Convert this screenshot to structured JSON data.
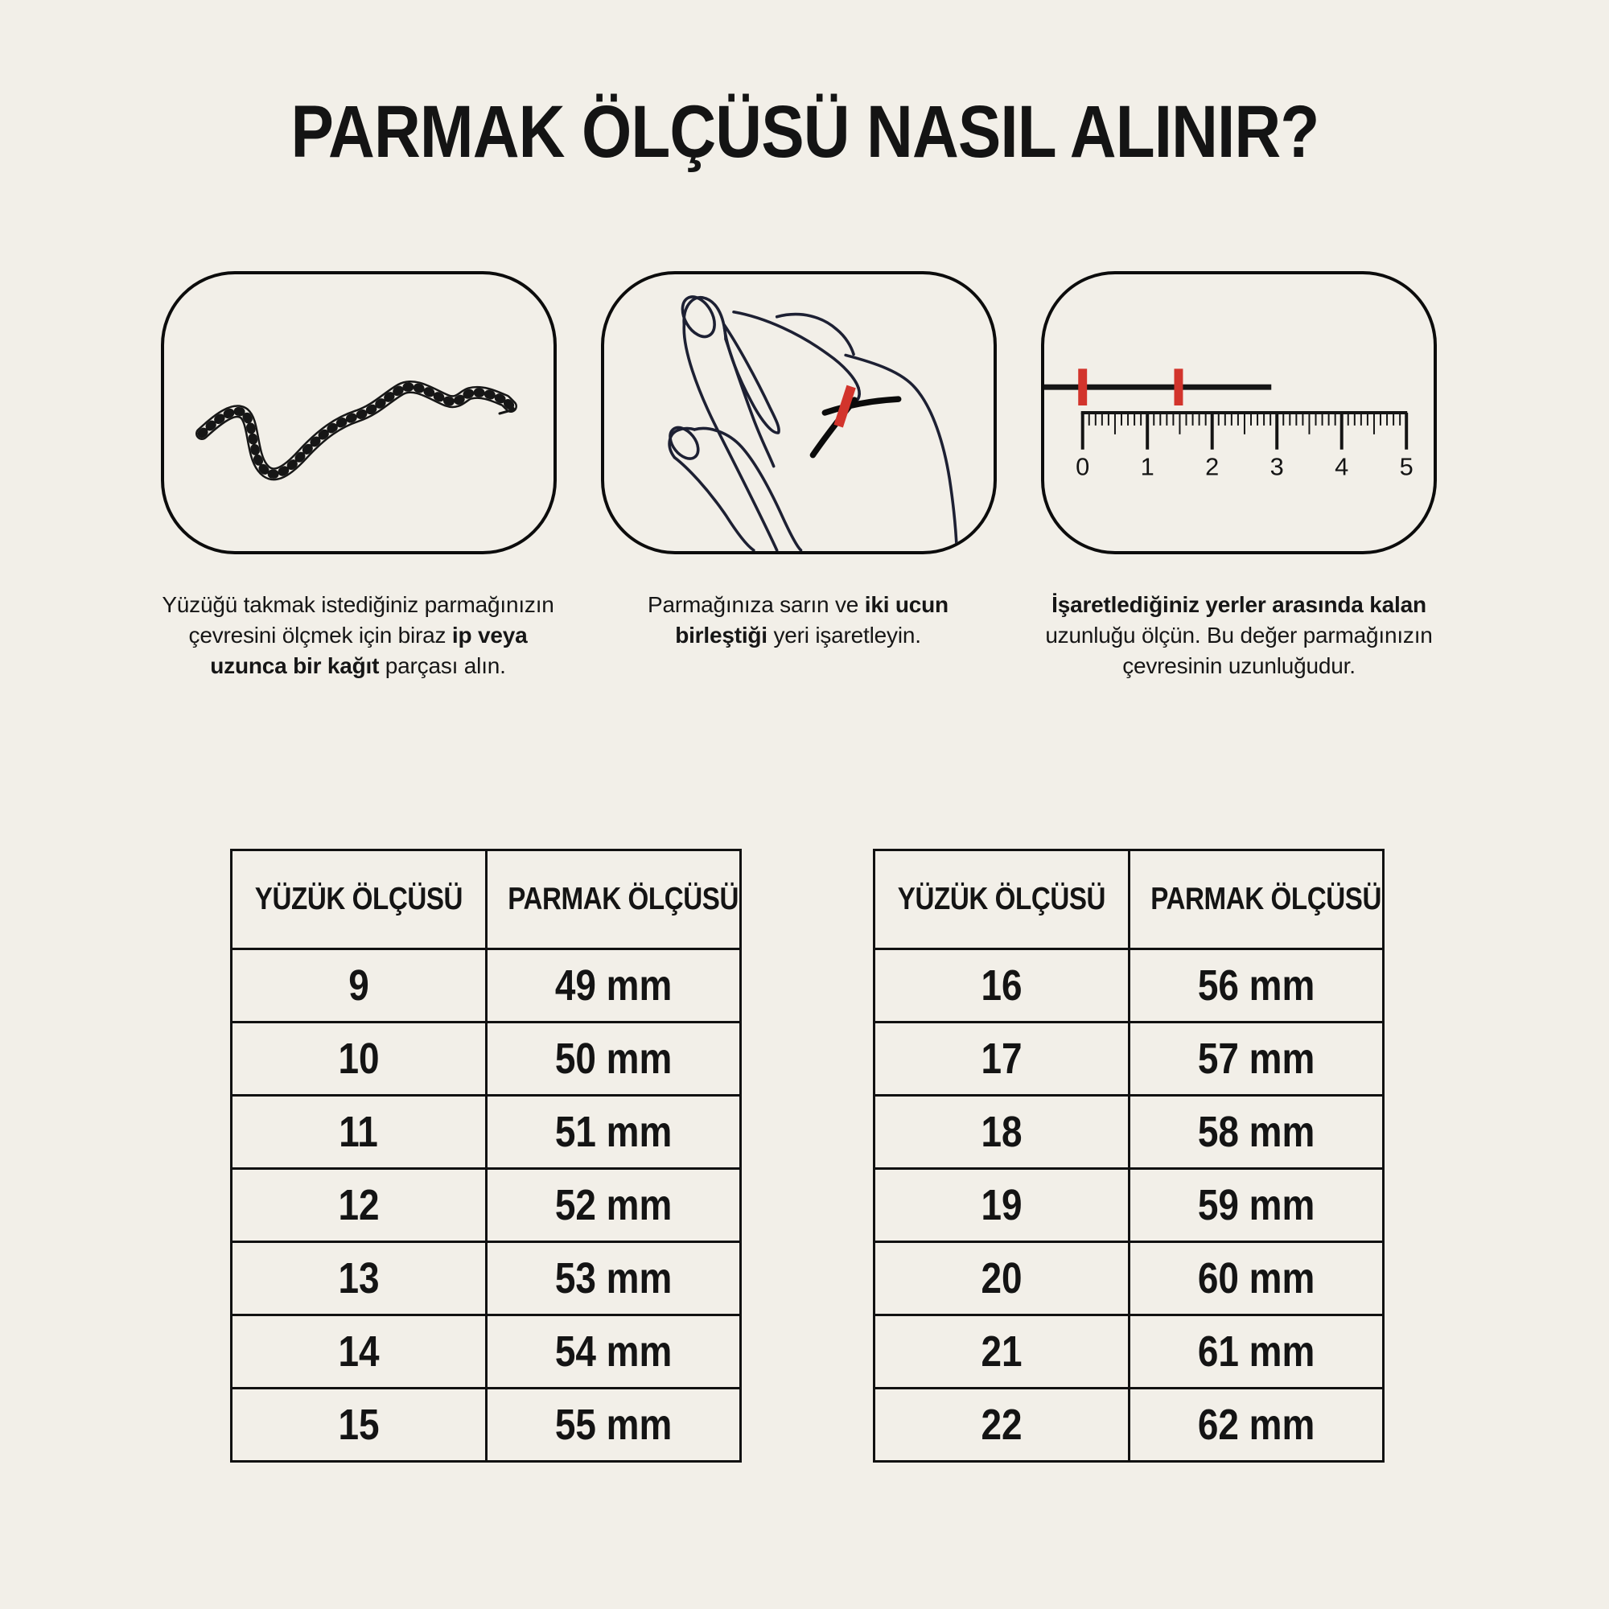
{
  "page": {
    "title": "PARMAK ÖLÇÜSÜ NASIL ALINIR?",
    "background": "#f2efe8"
  },
  "colors": {
    "ink": "#141414",
    "hand_line": "#1d2033",
    "accent_red": "#d2342c"
  },
  "captions": {
    "c1": {
      "s1": "Yüzüğü takmak istediğiniz parmağınızın",
      "s2": "çevresini ölçmek için biraz ",
      "s3": "ip veya",
      "s4": "uzunca bir kağıt",
      "s5": " parçası alın."
    },
    "c2": {
      "s1": "Parmağınıza sarın ve ",
      "s2": "iki ucun",
      "s3": "birleştiği",
      "s4": " yeri işaretleyin."
    },
    "c3": {
      "s1": "İşaretlediğiniz yerler arasında kalan",
      "s2": "uzunluğu ölçün. Bu değer parmağınızın",
      "s3": "çevresinin uzunluğudur."
    }
  },
  "ruler": {
    "labels": [
      "0",
      "1",
      "2",
      "3",
      "4",
      "5"
    ]
  },
  "icons": {
    "step1": "rope-string-illustration",
    "step2": "hand-wrapped-string-illustration",
    "step3": "ruler-measurement-illustration"
  },
  "tables": [
    {
      "headers": [
        "YÜZÜK ÖLÇÜSÜ",
        "PARMAK ÖLÇÜSÜ"
      ],
      "rows": [
        [
          "9",
          "49 mm"
        ],
        [
          "10",
          "50 mm"
        ],
        [
          "11",
          "51 mm"
        ],
        [
          "12",
          "52 mm"
        ],
        [
          "13",
          "53 mm"
        ],
        [
          "14",
          "54 mm"
        ],
        [
          "15",
          "55 mm"
        ]
      ]
    },
    {
      "headers": [
        "YÜZÜK ÖLÇÜSÜ",
        "PARMAK ÖLÇÜSÜ"
      ],
      "rows": [
        [
          "16",
          "56 mm"
        ],
        [
          "17",
          "57 mm"
        ],
        [
          "18",
          "58 mm"
        ],
        [
          "19",
          "59 mm"
        ],
        [
          "20",
          "60 mm"
        ],
        [
          "21",
          "61 mm"
        ],
        [
          "22",
          "62 mm"
        ]
      ]
    }
  ]
}
